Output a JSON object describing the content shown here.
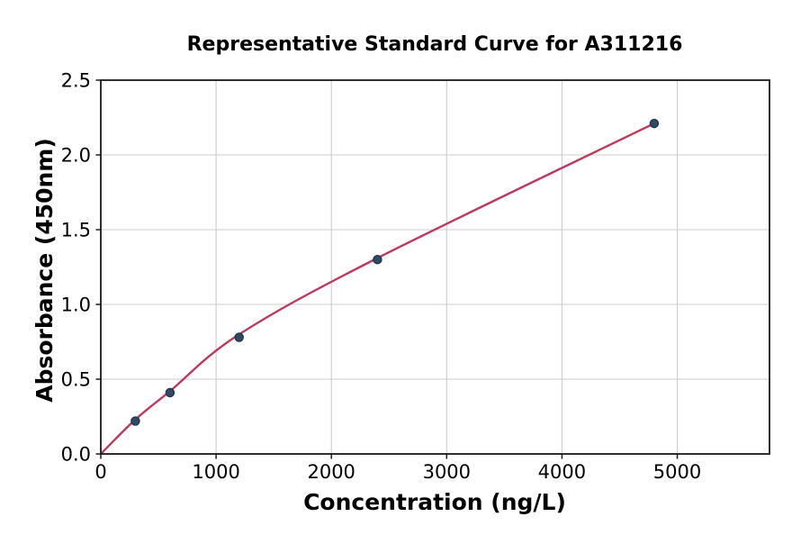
{
  "figure": {
    "background": "#ffffff"
  },
  "chart_data": {
    "type": "scatter",
    "title": "Representative Standard Curve for A311216",
    "xlabel": "Concentration (ng/L)",
    "ylabel": "Absorbance (450nm)",
    "xlim": [
      0,
      5800
    ],
    "ylim": [
      0,
      2.5
    ],
    "xticks": [
      {
        "v": 0,
        "label": "0"
      },
      {
        "v": 1000,
        "label": "1000"
      },
      {
        "v": 2000,
        "label": "2000"
      },
      {
        "v": 3000,
        "label": "3000"
      },
      {
        "v": 4000,
        "label": "4000"
      },
      {
        "v": 5000,
        "label": "5000"
      }
    ],
    "yticks": [
      {
        "v": 0.0,
        "label": "0.0"
      },
      {
        "v": 0.5,
        "label": "0.5"
      },
      {
        "v": 1.0,
        "label": "1.0"
      },
      {
        "v": 1.5,
        "label": "1.5"
      },
      {
        "v": 2.0,
        "label": "2.0"
      },
      {
        "v": 2.5,
        "label": "2.5"
      }
    ],
    "grid": true,
    "legend_position": "none",
    "points": [
      {
        "x": 300,
        "y": 0.22
      },
      {
        "x": 600,
        "y": 0.41
      },
      {
        "x": 1200,
        "y": 0.78
      },
      {
        "x": 2400,
        "y": 1.3
      },
      {
        "x": 4800,
        "y": 2.21
      }
    ],
    "fit_curve_points": [
      {
        "x": 0,
        "y": 0.0
      },
      {
        "x": 300,
        "y": 0.23
      },
      {
        "x": 600,
        "y": 0.42
      },
      {
        "x": 1200,
        "y": 0.8
      },
      {
        "x": 2400,
        "y": 1.31
      },
      {
        "x": 4800,
        "y": 2.21
      }
    ],
    "colors": {
      "curve": "#bc3a5e",
      "marker_fill": "#2f4a63",
      "marker_edge": "#22364b",
      "grid": "#cccccc",
      "axis": "#1a1a1a",
      "text": "#000000"
    }
  }
}
